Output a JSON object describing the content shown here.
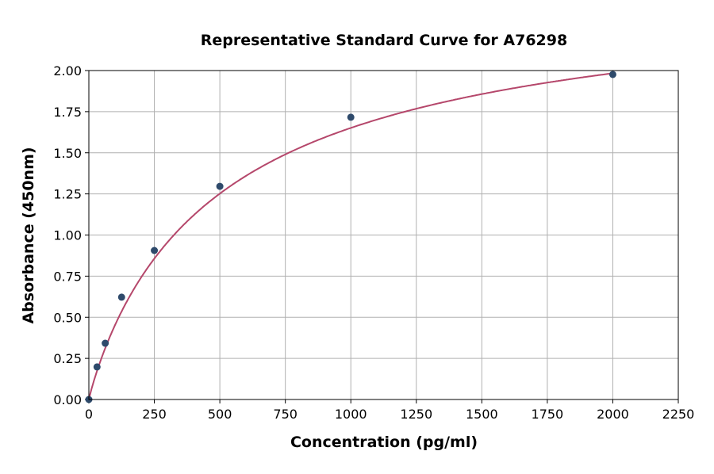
{
  "chart_data": {
    "type": "scatter",
    "title": "Representative Standard Curve for A76298",
    "xlabel": "Concentration (pg/ml)",
    "ylabel": "Absorbance (450nm)",
    "xlim": [
      0,
      2250
    ],
    "ylim": [
      0,
      2.0
    ],
    "xticks": [
      "0",
      "250",
      "500",
      "750",
      "1000",
      "1250",
      "1500",
      "1750",
      "2000",
      "2250"
    ],
    "yticks": [
      "0.00",
      "0.25",
      "0.50",
      "0.75",
      "1.00",
      "1.25",
      "1.50",
      "1.75",
      "2.00"
    ],
    "grid": true,
    "series": [
      {
        "x": [
          0,
          31.25,
          62.5,
          125,
          250,
          500,
          1000,
          2000
        ],
        "y": [
          0.0,
          0.198,
          0.342,
          0.622,
          0.906,
          1.296,
          1.716,
          1.976
        ],
        "color": "#2e4a6b"
      }
    ],
    "fit_curve_color": "#b5476b"
  }
}
